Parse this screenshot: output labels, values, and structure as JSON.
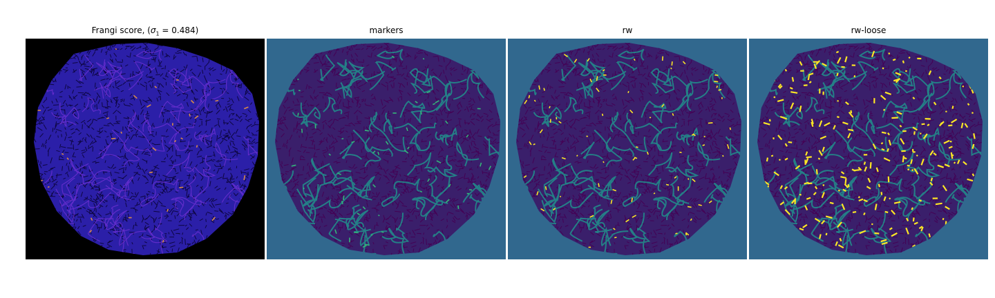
{
  "figure": {
    "panels": [
      {
        "id": "frangi",
        "title_prefix": "Frangi score, (",
        "title_var": "σ",
        "title_sub": "1",
        "title_suffix": " = 0.484)",
        "background": "#000000",
        "blob": "#2b1fa8",
        "texture": "#0d0640",
        "vessel": "#6a2fd0",
        "highlight": "#d68a4a"
      },
      {
        "id": "markers",
        "title": "markers",
        "background": "#31688e",
        "blob": "#3a1f6b",
        "texture": "#440154",
        "vessel": "#21918c",
        "highlight": "#35b779"
      },
      {
        "id": "rw",
        "title": "rw",
        "background": "#31688e",
        "blob": "#3a1f6b",
        "texture": "#440154",
        "vessel": "#21918c",
        "highlight": "#fde725"
      },
      {
        "id": "rw-loose",
        "title": "rw-loose",
        "background": "#31688e",
        "blob": "#3a1f6b",
        "texture": "#440154",
        "vessel": "#21918c",
        "highlight": "#fde725"
      }
    ]
  }
}
